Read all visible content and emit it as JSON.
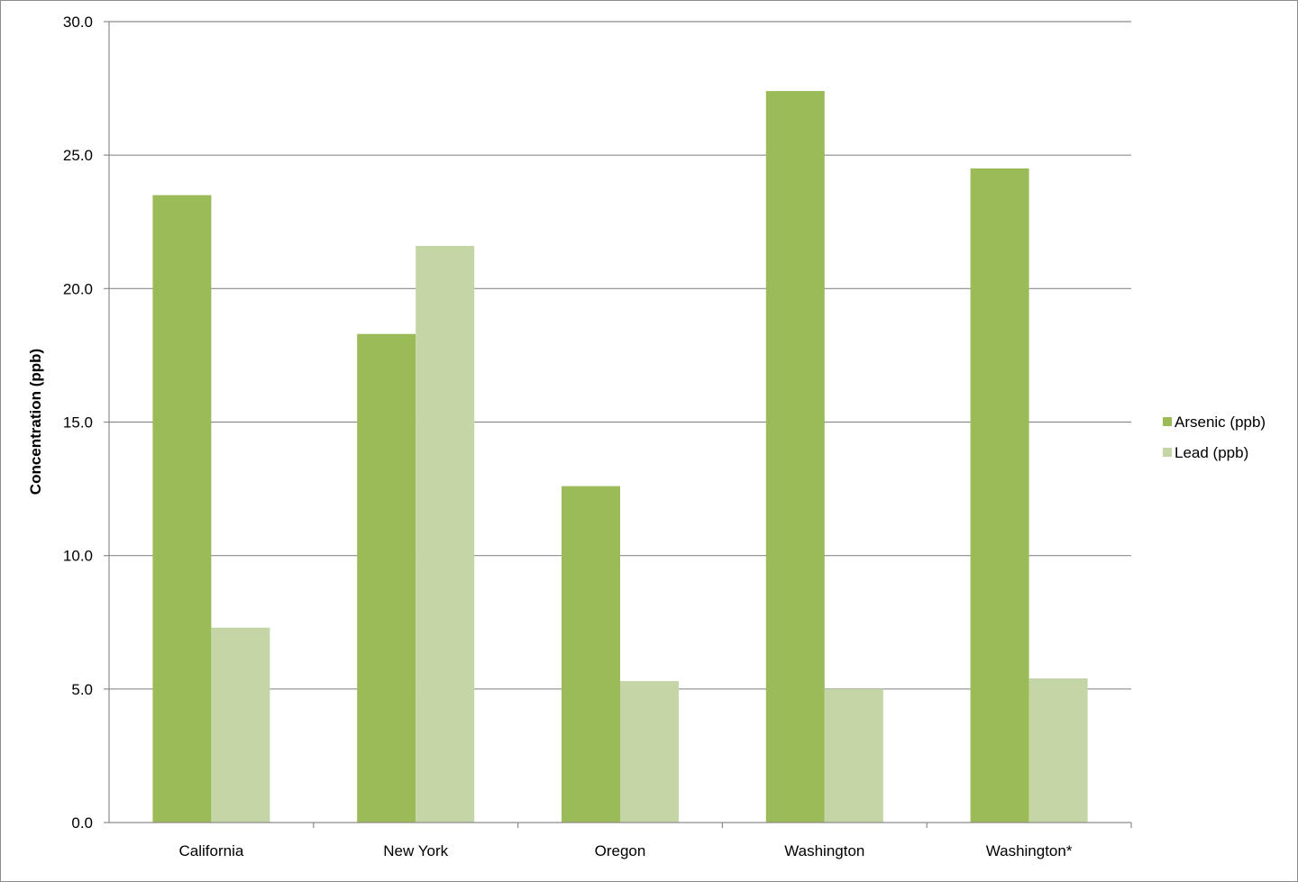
{
  "chart_data": {
    "type": "bar",
    "title": "",
    "xlabel": "",
    "ylabel": "Concentration (ppb)",
    "ylim": [
      0,
      30
    ],
    "y_ticks": [
      "0.0",
      "5.0",
      "10.0",
      "15.0",
      "20.0",
      "25.0",
      "30.0"
    ],
    "y_tick_values": [
      0,
      5,
      10,
      15,
      20,
      25,
      30
    ],
    "grid": true,
    "legend_position": "right",
    "categories": [
      "California",
      "New York",
      "Oregon",
      "Washington",
      "Washington*"
    ],
    "series": [
      {
        "name": "Arsenic (ppb)",
        "color": "#9bbb59",
        "values": [
          23.5,
          18.3,
          12.6,
          27.4,
          24.5
        ]
      },
      {
        "name": "Lead (ppb)",
        "color": "#c4d6a6",
        "values": [
          7.3,
          21.6,
          5.3,
          5.0,
          5.4
        ]
      }
    ]
  }
}
